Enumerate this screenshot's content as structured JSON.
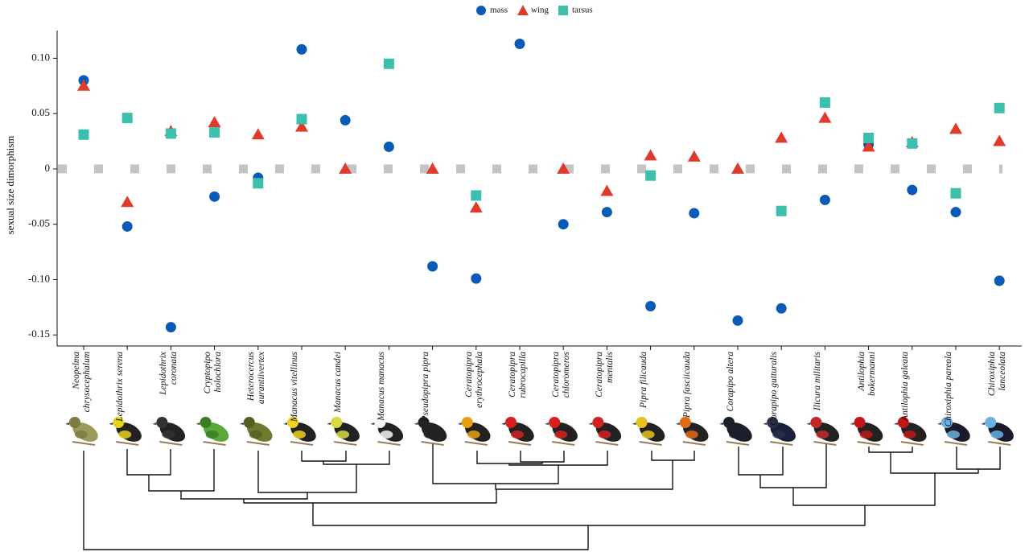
{
  "chart_data": {
    "type": "scatter",
    "y_label": "sexual size dimorphism",
    "categories": [
      "Neopelma chrysocephalum",
      "Lepidothrix serena",
      "Lepidothrix coronata",
      "Cryptopipo holochlora",
      "Heterocercus aurantiivertex",
      "Manacus vitellinus",
      "Manacus candei",
      "Manacus manacus",
      "Pseudopipra pipra",
      "Ceratopipra erythrocephala",
      "Ceratopipra rubrocapilla",
      "Ceratopipra chloromeros",
      "Ceratopipra mentalis",
      "Pipra filicauda",
      "Pipra fasciicauda",
      "Corapipo altera",
      "Corapipo gutturalis",
      "Ilicura militaris",
      "Antilophia bokermanni",
      "Antilophia galeata",
      "Chiroxiphia pareola",
      "Chiroxiphia lanceolata"
    ],
    "series": [
      {
        "name": "mass",
        "color": "#0a5bb5",
        "marker": "circle",
        "values": [
          0.08,
          -0.052,
          -0.143,
          -0.025,
          -0.008,
          0.108,
          0.044,
          0.02,
          -0.088,
          -0.099,
          0.113,
          -0.05,
          -0.039,
          -0.124,
          -0.04,
          -0.137,
          -0.126,
          -0.028,
          0.022,
          -0.019,
          -0.039,
          -0.101
        ]
      },
      {
        "name": "wing",
        "color": "#e03a2a",
        "marker": "triangle",
        "values": [
          0.075,
          -0.03,
          0.034,
          0.042,
          0.031,
          0.038,
          0.0,
          null,
          0.0,
          -0.035,
          null,
          0.0,
          -0.02,
          0.012,
          0.011,
          0.0,
          0.028,
          0.046,
          0.02,
          0.024,
          0.036,
          0.025
        ]
      },
      {
        "name": "tarsus",
        "color": "#3dbfae",
        "marker": "square",
        "values": [
          0.031,
          0.046,
          0.032,
          0.033,
          -0.013,
          0.045,
          null,
          0.095,
          null,
          -0.024,
          null,
          null,
          null,
          -0.006,
          null,
          null,
          -0.038,
          0.06,
          0.028,
          0.023,
          -0.022,
          0.055
        ]
      }
    ],
    "ylim": [
      -0.16,
      0.125
    ],
    "yticks": [
      {
        "value": 0.1,
        "label": "0.10"
      },
      0.05,
      0,
      -0.05,
      {
        "value": -0.1,
        "label": "-0.10"
      },
      -0.15
    ],
    "grid": false,
    "legend": "top"
  }
}
